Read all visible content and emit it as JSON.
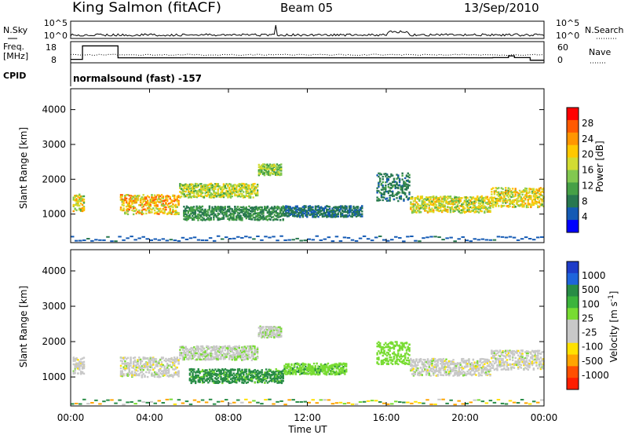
{
  "header": {
    "station": "King Salmon (fitACF)",
    "beam": "Beam 05",
    "date": "13/Sep/2010"
  },
  "noise_panel": {
    "left_label": "N.Sky",
    "right_label": "N.Search",
    "left_ticks": [
      "10^5",
      "10^0"
    ],
    "right_ticks": [
      "10^5",
      "10^0"
    ]
  },
  "freq_panel": {
    "left_label_1": "Freq.",
    "left_label_2": "[MHz]",
    "left_ticks": [
      "18",
      "8"
    ],
    "right_label": "Nave",
    "right_ticks": [
      "60",
      "0"
    ]
  },
  "cpid": {
    "label": "CPID",
    "program": "normalsound (fast) -157"
  },
  "x_axis": {
    "label": "Time UT",
    "ticks": [
      "00:00",
      "04:00",
      "08:00",
      "12:00",
      "16:00",
      "20:00",
      "00:00"
    ]
  },
  "power_colorbar": {
    "label": "Power [dB]",
    "ticks": [
      "28",
      "24",
      "20",
      "16",
      "12",
      "8",
      "4"
    ],
    "colors": [
      "#ff0000",
      "#ff5a00",
      "#ff9600",
      "#ffc800",
      "#d2dc32",
      "#82c850",
      "#46a046",
      "#287850",
      "#145ab4",
      "#0000ff"
    ]
  },
  "velocity_colorbar": {
    "label": "Velocity [m s",
    "label_sup": "-1",
    "label_end": "]",
    "ticks": [
      "1000",
      "500",
      "100",
      "25",
      "-25",
      "-100",
      "-500",
      "-1000"
    ],
    "colors": [
      "#1e3cc8",
      "#1e64dc",
      "#288c46",
      "#3cb43c",
      "#78dc32",
      "#c8c8c8",
      "#c8c8c8",
      "#ffe100",
      "#ffa500",
      "#ff5000",
      "#ff1e00"
    ]
  },
  "chart_data": [
    {
      "type": "heatmap",
      "title": "Power",
      "xlabel": "Time UT",
      "ylabel": "Slant Range [km]",
      "xlim": [
        0,
        24
      ],
      "ylim": [
        180,
        4600
      ],
      "yticks": [
        "1000",
        "2000",
        "3000",
        "4000"
      ],
      "zlabel": "Power [dB]",
      "zlim": [
        0,
        32
      ],
      "echo_bands": [
        {
          "t0": 0.1,
          "t1": 0.7,
          "range": 1350,
          "width": 300,
          "peak_db": 26
        },
        {
          "t0": 2.5,
          "t1": 5.5,
          "range": 1300,
          "width": 350,
          "peak_db": 30
        },
        {
          "t0": 5.5,
          "t1": 9.5,
          "range": 1700,
          "width": 250,
          "peak_db": 22
        },
        {
          "t0": 9.5,
          "t1": 10.7,
          "range": 2300,
          "width": 200,
          "peak_db": 20
        },
        {
          "t0": 5.7,
          "t1": 10.8,
          "range": 1050,
          "width": 250,
          "peak_db": 12
        },
        {
          "t0": 10.8,
          "t1": 14.8,
          "range": 1100,
          "width": 200,
          "peak_db": 8
        },
        {
          "t0": 15.5,
          "t1": 17.2,
          "range": 1800,
          "width": 500,
          "peak_db": 10
        },
        {
          "t0": 17.2,
          "t1": 21.3,
          "range": 1300,
          "width": 300,
          "peak_db": 24
        },
        {
          "t0": 21.3,
          "t1": 24.0,
          "range": 1500,
          "width": 350,
          "peak_db": 26
        }
      ]
    },
    {
      "type": "heatmap",
      "title": "Velocity",
      "xlabel": "Time UT",
      "ylabel": "Slant Range [km]",
      "xlim": [
        0,
        24
      ],
      "ylim": [
        180,
        4600
      ],
      "yticks": [
        "1000",
        "2000",
        "3000",
        "4000"
      ],
      "zlabel": "Velocity [m s-1]",
      "zlim": [
        -1000,
        1000
      ],
      "echo_bands": [
        {
          "t0": 0.1,
          "t1": 0.7,
          "range": 1350,
          "width": 300,
          "vel": 0
        },
        {
          "t0": 2.5,
          "t1": 5.5,
          "range": 1300,
          "width": 350,
          "vel": 0
        },
        {
          "t0": 5.5,
          "t1": 9.5,
          "range": 1700,
          "width": 250,
          "vel": 10
        },
        {
          "t0": 9.5,
          "t1": 10.7,
          "range": 2300,
          "width": 200,
          "vel": 10
        },
        {
          "t0": 6.0,
          "t1": 10.8,
          "range": 1050,
          "width": 250,
          "vel": 120
        },
        {
          "t0": 10.8,
          "t1": 14.0,
          "range": 1250,
          "width": 200,
          "vel": 80
        },
        {
          "t0": 15.5,
          "t1": 17.2,
          "range": 1700,
          "width": 400,
          "vel": 60
        },
        {
          "t0": 17.2,
          "t1": 21.3,
          "range": 1300,
          "width": 300,
          "vel": 0
        },
        {
          "t0": 21.3,
          "t1": 24.0,
          "range": 1500,
          "width": 350,
          "vel": 0
        }
      ]
    }
  ]
}
